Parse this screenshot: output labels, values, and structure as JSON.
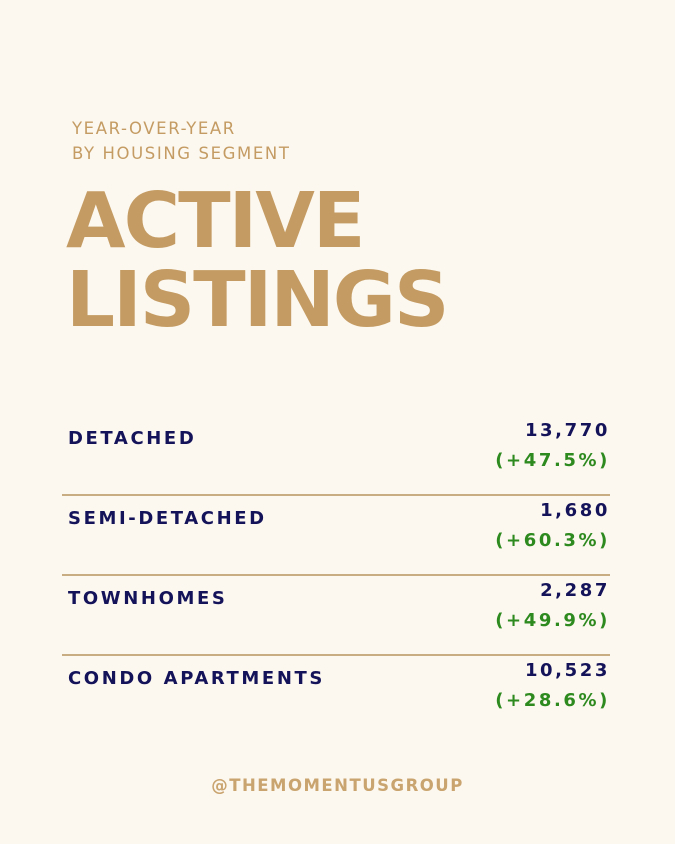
{
  "header": {
    "subtitle_line1": "YEAR-OVER-YEAR",
    "subtitle_line2": "BY HOUSING SEGMENT",
    "title_line1": "ACTIVE",
    "title_line2": "LISTINGS"
  },
  "segments": [
    {
      "label": "DETACHED",
      "count": "13,770",
      "change": "(+47.5%)"
    },
    {
      "label": "SEMI-DETACHED",
      "count": "1,680",
      "change": "(+60.3%)"
    },
    {
      "label": "TOWNHOMES",
      "count": "2,287",
      "change": "(+49.9%)"
    },
    {
      "label": "CONDO APARTMENTS",
      "count": "10,523",
      "change": "(+28.6%)"
    }
  ],
  "footer": {
    "handle": "@THEMOMENTUSGROUP"
  },
  "colors": {
    "background": "#fcf7ef",
    "gold": "#c49c63",
    "navy": "#14135a",
    "green": "#2d8a1e"
  }
}
